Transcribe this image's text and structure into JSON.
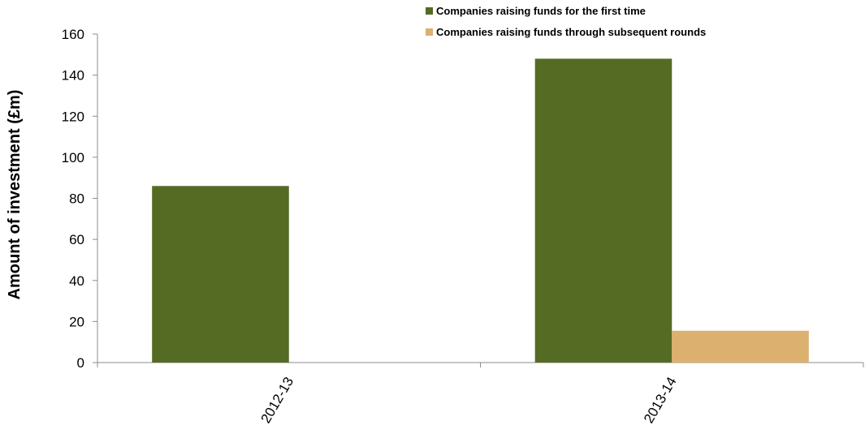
{
  "chart_data": {
    "type": "bar",
    "title": "",
    "xlabel": "",
    "ylabel": "Amount of investment (£m)",
    "categories": [
      "2012-13",
      "2013-14"
    ],
    "series": [
      {
        "name": "Companies raising funds for the first time",
        "values": [
          86,
          148
        ],
        "color": "#556b24"
      },
      {
        "name": "Companies raising funds through subsequent rounds",
        "values": [
          0,
          15.5
        ],
        "color": "#dcb06e"
      }
    ],
    "ylim": [
      0,
      160
    ],
    "yticks": [
      0,
      20,
      40,
      60,
      80,
      100,
      120,
      140,
      160
    ],
    "grid": false,
    "legend_position": "top-right"
  }
}
